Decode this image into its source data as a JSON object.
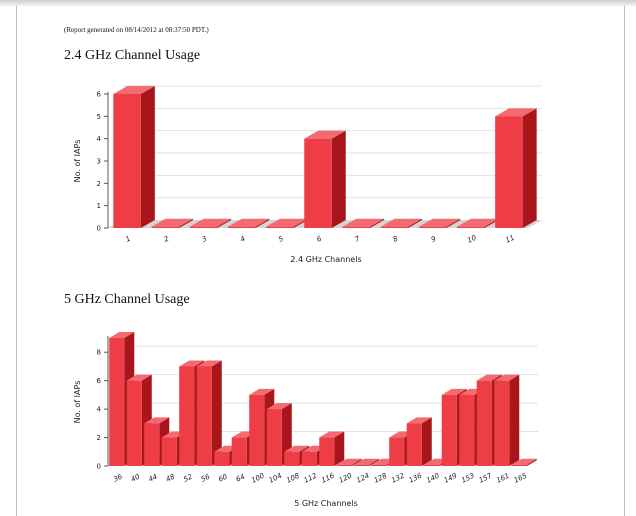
{
  "report_note": "(Report generated on 08/14/2012 at 08:37:50 PDT.)",
  "colors": {
    "bar_front": "#ee3d45",
    "bar_side": "#a8161c",
    "bar_top": "#f36a70",
    "floor": "#d4d4d4",
    "grid": "#e2e2e2"
  },
  "chart_data": [
    {
      "type": "bar",
      "title": "2.4 GHz Channel Usage",
      "xlabel": "2.4 GHz Channels",
      "ylabel": "No. of IAPs",
      "ylim": [
        0,
        6
      ],
      "yticks": [
        0,
        1,
        2,
        3,
        4,
        5,
        6
      ],
      "grid": true,
      "categories": [
        "1",
        "2",
        "3",
        "4",
        "5",
        "6",
        "7",
        "8",
        "9",
        "10",
        "11"
      ],
      "values": [
        6,
        0,
        0,
        0,
        0,
        4,
        0,
        0,
        0,
        0,
        5
      ]
    },
    {
      "type": "bar",
      "title": "5 GHz Channel Usage",
      "xlabel": "5 GHz Channels",
      "ylabel": "No. of IAPs",
      "ylim": [
        0,
        9
      ],
      "yticks": [
        0,
        2,
        4,
        6,
        8
      ],
      "grid": true,
      "categories": [
        "36",
        "40",
        "44",
        "48",
        "52",
        "56",
        "60",
        "64",
        "100",
        "104",
        "108",
        "112",
        "116",
        "120",
        "124",
        "128",
        "132",
        "136",
        "140",
        "149",
        "153",
        "157",
        "161",
        "165"
      ],
      "values": [
        9,
        6,
        3,
        2,
        7,
        7,
        1,
        2,
        5,
        4,
        1,
        1,
        2,
        0,
        0,
        0,
        2,
        3,
        0,
        5,
        5,
        6,
        6,
        0
      ]
    }
  ]
}
